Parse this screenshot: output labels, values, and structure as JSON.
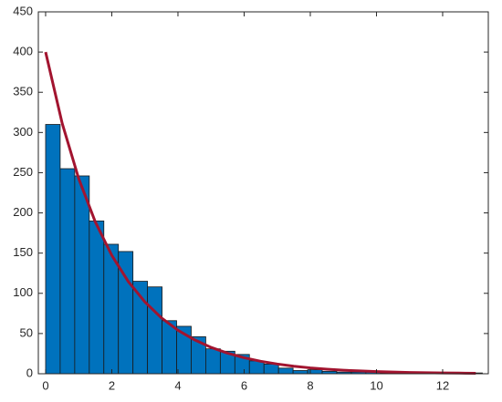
{
  "chart_data": {
    "type": "histogram",
    "bins": [
      0,
      0.44,
      0.88,
      1.32,
      1.76,
      2.2,
      2.64,
      3.08,
      3.52,
      3.96,
      4.4,
      4.84,
      5.28,
      5.72,
      6.16,
      6.6,
      7.04,
      7.48,
      7.92,
      8.36,
      8.8,
      9.24,
      9.68,
      10.12,
      10.56,
      11,
      11.44,
      11.88,
      12.32,
      12.76,
      13.2
    ],
    "values": [
      310,
      255,
      246,
      190,
      161,
      152,
      115,
      108,
      66,
      59,
      46,
      31,
      28,
      24,
      16,
      12,
      7,
      4,
      5,
      3,
      2,
      2,
      2,
      1,
      1,
      1,
      0,
      1,
      0,
      1
    ],
    "color": "#0072bd",
    "edge_color": "#1a1a1a",
    "fit": {
      "color": "#a2142f",
      "x": [
        0,
        0.5,
        1,
        1.5,
        2,
        2.5,
        3,
        3.5,
        4,
        4.5,
        5,
        5.5,
        6,
        6.5,
        7,
        7.5,
        8,
        8.5,
        9,
        9.5,
        10,
        10.5,
        11,
        11.5,
        12,
        12.5,
        13
      ],
      "y": [
        400,
        311.5,
        242.6,
        188.9,
        147.2,
        114.6,
        89.3,
        69.5,
        54.1,
        42.2,
        32.8,
        25.6,
        19.9,
        15.5,
        12.1,
        9.4,
        7.3,
        5.7,
        4.4,
        3.5,
        2.7,
        2.1,
        1.6,
        1.3,
        1.0,
        0.8,
        0.6
      ]
    },
    "xlim": [
      -0.22,
      13.38
    ],
    "xticks": [
      0,
      2,
      4,
      6,
      8,
      10,
      12
    ],
    "ylim": [
      0,
      450
    ],
    "yticks": [
      0,
      50,
      100,
      150,
      200,
      250,
      300,
      350,
      400,
      450
    ]
  }
}
